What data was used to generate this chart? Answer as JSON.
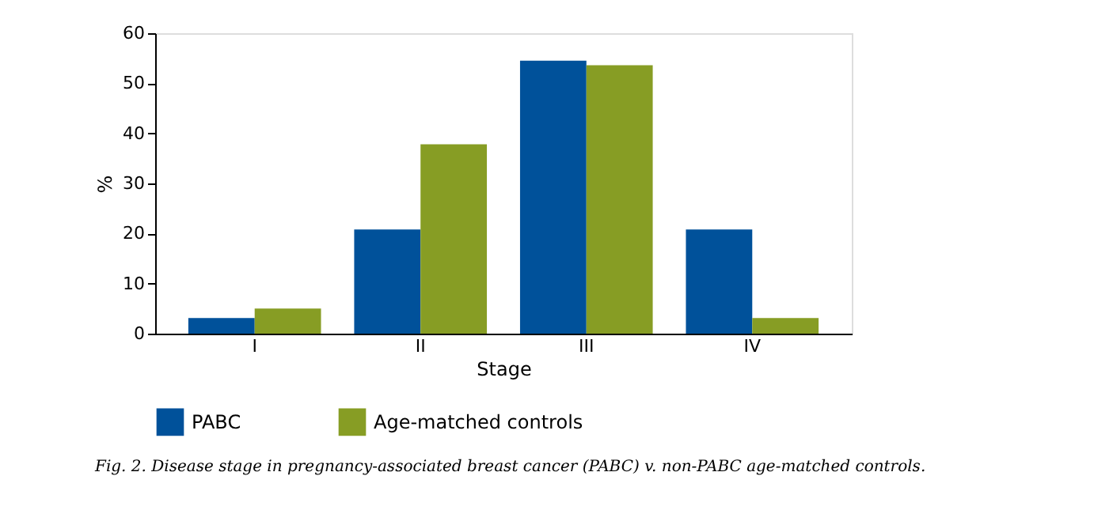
{
  "chart_data": {
    "type": "bar",
    "xlabel": "Stage",
    "ylabel": "%",
    "categories": [
      "I",
      "II",
      "III",
      "IV"
    ],
    "series": [
      {
        "name": "PABC",
        "color": "#00519a",
        "values": [
          3.1,
          20.8,
          54.5,
          20.8
        ]
      },
      {
        "name": "Age-matched controls",
        "color": "#879d24",
        "values": [
          5,
          37.8,
          53.6,
          3.1
        ]
      }
    ],
    "ylim": [
      0,
      60
    ],
    "yticks": [
      0,
      10,
      20,
      30,
      40,
      50,
      60
    ],
    "grid": false,
    "legend": "bottom",
    "annotations": [
      "Fig. 2. Disease stage in pregnancy-associated breast cancer (PABC) v. non-PABC age-matched controls."
    ]
  }
}
